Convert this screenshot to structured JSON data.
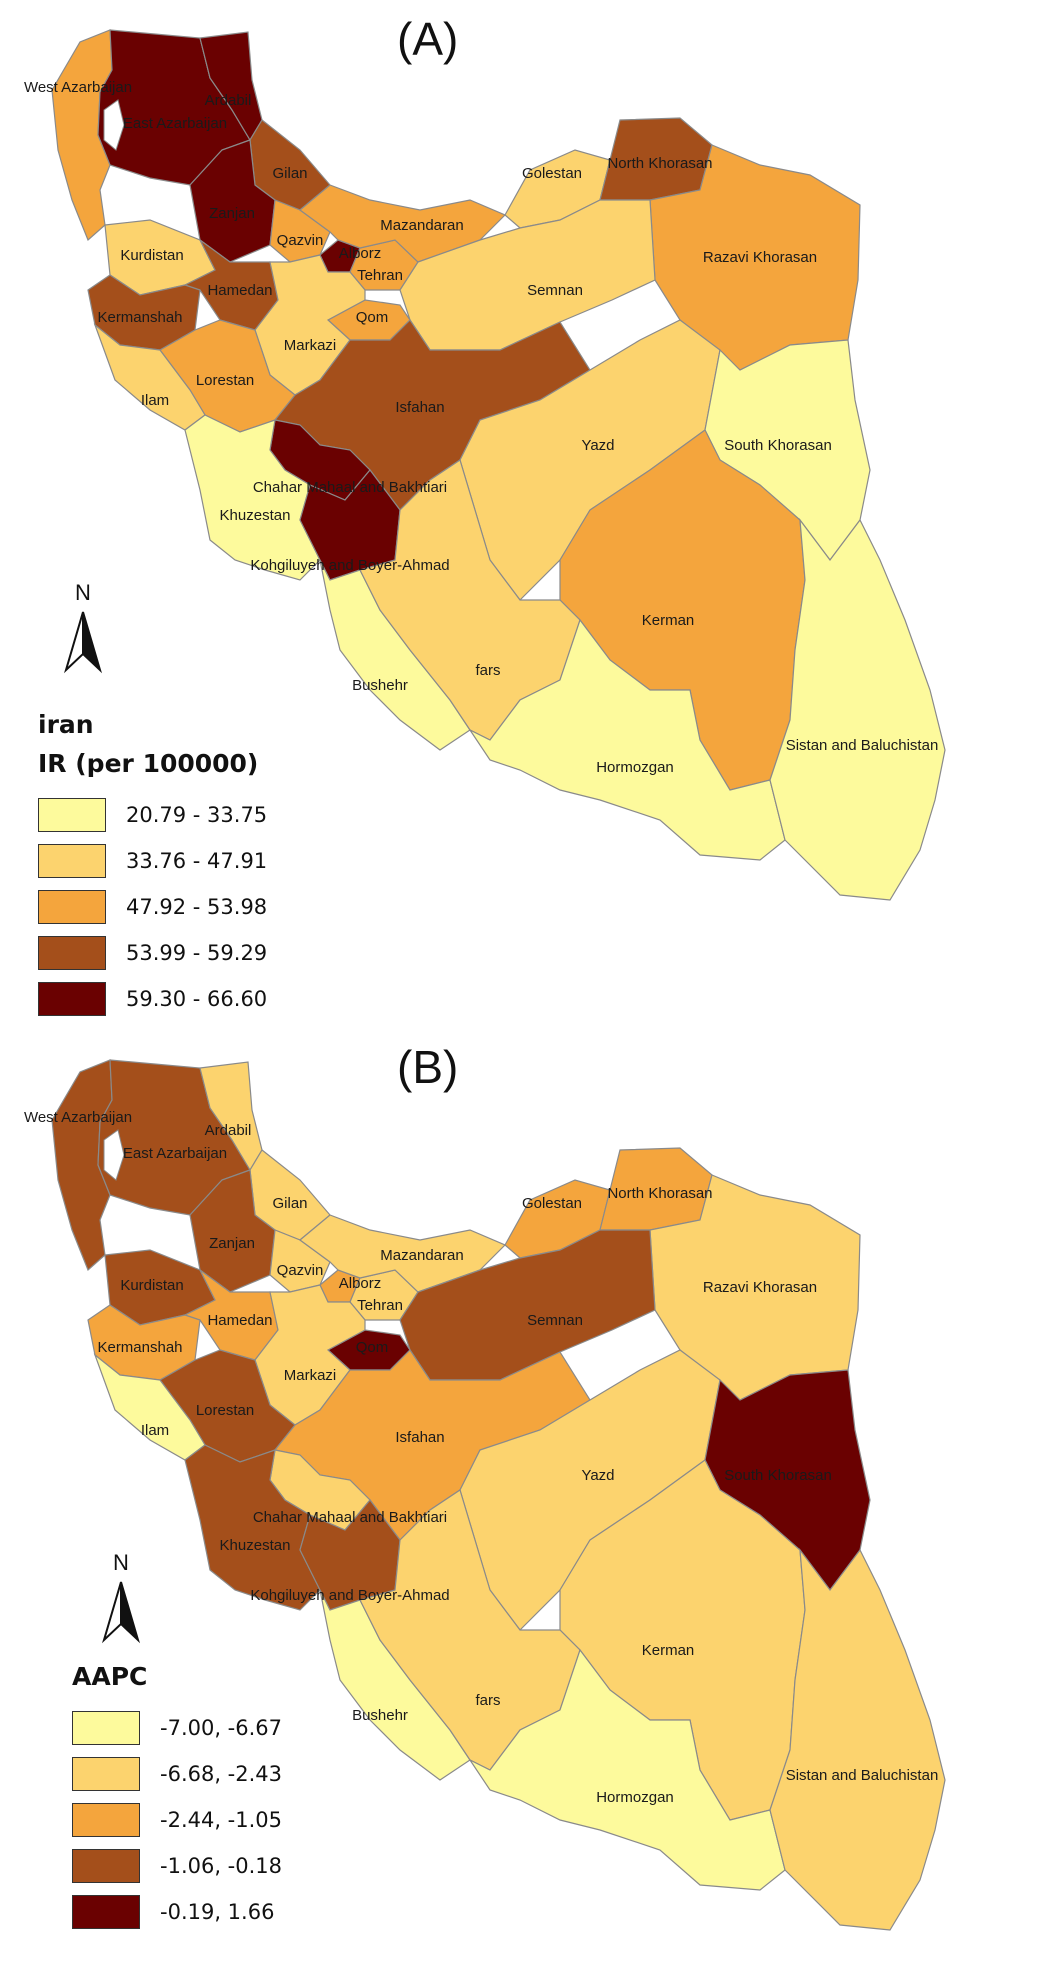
{
  "colors": {
    "c1": "#fdfa9c",
    "c2": "#fcd36e",
    "c3": "#f4a53d",
    "c4": "#a44f1b",
    "c5": "#6a0101"
  },
  "panel_a": {
    "title": "(A)",
    "legend_title": "iran",
    "legend_subtitle": "IR (per 100000)",
    "classes": [
      {
        "range": "20.79 - 33.75",
        "class": "c1"
      },
      {
        "range": "33.76 - 47.91",
        "class": "c2"
      },
      {
        "range": "47.92 - 53.98",
        "class": "c3"
      },
      {
        "range": "53.99 - 59.29",
        "class": "c4"
      },
      {
        "range": "59.30 - 66.60",
        "class": "c5"
      }
    ],
    "north": "N",
    "provinces": [
      {
        "name": "West Azarbaijan",
        "class": "c3"
      },
      {
        "name": "East Azarbaijan",
        "class": "c5"
      },
      {
        "name": "Ardabil",
        "class": "c5"
      },
      {
        "name": "Gilan",
        "class": "c4"
      },
      {
        "name": "Zanjan",
        "class": "c5"
      },
      {
        "name": "Qazvin",
        "class": "c3"
      },
      {
        "name": "Alborz",
        "class": "c5"
      },
      {
        "name": "Tehran",
        "class": "c3"
      },
      {
        "name": "Mazandaran",
        "class": "c3"
      },
      {
        "name": "Golestan",
        "class": "c2"
      },
      {
        "name": "North Khorasan",
        "class": "c4"
      },
      {
        "name": "Razavi Khorasan",
        "class": "c3"
      },
      {
        "name": "Semnan",
        "class": "c2"
      },
      {
        "name": "Kurdistan",
        "class": "c2"
      },
      {
        "name": "Hamedan",
        "class": "c4"
      },
      {
        "name": "Kermanshah",
        "class": "c4"
      },
      {
        "name": "Qom",
        "class": "c3"
      },
      {
        "name": "Markazi",
        "class": "c2"
      },
      {
        "name": "Lorestan",
        "class": "c3"
      },
      {
        "name": "Ilam",
        "class": "c2"
      },
      {
        "name": "Isfahan",
        "class": "c4"
      },
      {
        "name": "Yazd",
        "class": "c2"
      },
      {
        "name": "South Khorasan",
        "class": "c1"
      },
      {
        "name": "Chahar Mahaal and Bakhtiari",
        "class": "c5"
      },
      {
        "name": "Khuzestan",
        "class": "c1"
      },
      {
        "name": "Kohgiluyeh and Boyer-Ahmad",
        "class": "c5"
      },
      {
        "name": "Kerman",
        "class": "c3"
      },
      {
        "name": "Bushehr",
        "class": "c1"
      },
      {
        "name": "fars",
        "class": "c2"
      },
      {
        "name": "Hormozgan",
        "class": "c1"
      },
      {
        "name": "Sistan and Baluchistan",
        "class": "c1"
      }
    ]
  },
  "panel_b": {
    "title": "(B)",
    "legend_title": "AAPC",
    "classes": [
      {
        "range": "-7.00, -6.67",
        "class": "c1"
      },
      {
        "range": "-6.68, -2.43",
        "class": "c2"
      },
      {
        "range": "-2.44, -1.05",
        "class": "c3"
      },
      {
        "range": "-1.06, -0.18",
        "class": "c4"
      },
      {
        "range": "-0.19, 1.66",
        "class": "c5"
      }
    ],
    "north": "N",
    "provinces": [
      {
        "name": "West Azarbaijan",
        "class": "c4"
      },
      {
        "name": "East Azarbaijan",
        "class": "c4"
      },
      {
        "name": "Ardabil",
        "class": "c2"
      },
      {
        "name": "Gilan",
        "class": "c2"
      },
      {
        "name": "Zanjan",
        "class": "c4"
      },
      {
        "name": "Qazvin",
        "class": "c2"
      },
      {
        "name": "Alborz",
        "class": "c3"
      },
      {
        "name": "Tehran",
        "class": "c2"
      },
      {
        "name": "Mazandaran",
        "class": "c2"
      },
      {
        "name": "Golestan",
        "class": "c3"
      },
      {
        "name": "North Khorasan",
        "class": "c3"
      },
      {
        "name": "Razavi Khorasan",
        "class": "c2"
      },
      {
        "name": "Semnan",
        "class": "c4"
      },
      {
        "name": "Kurdistan",
        "class": "c4"
      },
      {
        "name": "Hamedan",
        "class": "c3"
      },
      {
        "name": "Kermanshah",
        "class": "c3"
      },
      {
        "name": "Qom",
        "class": "c5"
      },
      {
        "name": "Markazi",
        "class": "c2"
      },
      {
        "name": "Lorestan",
        "class": "c4"
      },
      {
        "name": "Ilam",
        "class": "c1"
      },
      {
        "name": "Isfahan",
        "class": "c3"
      },
      {
        "name": "Yazd",
        "class": "c2"
      },
      {
        "name": "South Khorasan",
        "class": "c5"
      },
      {
        "name": "Chahar Mahaal and Bakhtiari",
        "class": "c2"
      },
      {
        "name": "Khuzestan",
        "class": "c4"
      },
      {
        "name": "Kohgiluyeh and Boyer-Ahmad",
        "class": "c4"
      },
      {
        "name": "Kerman",
        "class": "c2"
      },
      {
        "name": "Bushehr",
        "class": "c1"
      },
      {
        "name": "fars",
        "class": "c2"
      },
      {
        "name": "Hormozgan",
        "class": "c1"
      },
      {
        "name": "Sistan and Baluchistan",
        "class": "c2"
      }
    ]
  }
}
